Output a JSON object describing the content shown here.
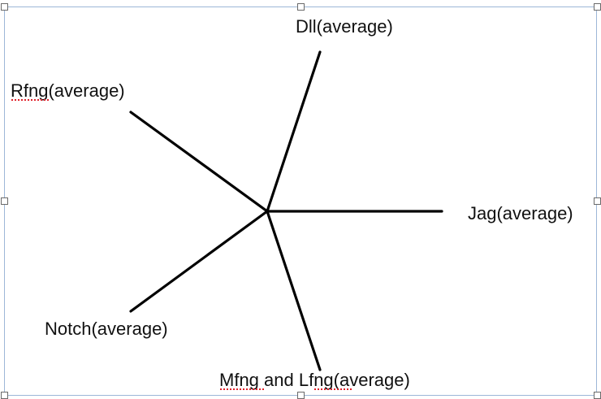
{
  "diagram": {
    "center_label": "",
    "branches": [
      {
        "id": "dll",
        "label": "Dll(average)"
      },
      {
        "id": "rfng",
        "label": "Rfng(average)"
      },
      {
        "id": "jag",
        "label": "Jag(average)"
      },
      {
        "id": "notch",
        "label": "Notch(average)"
      },
      {
        "id": "mfng-lfng",
        "label": "Mfng and Lfng(average)"
      }
    ],
    "colors": {
      "line": "#000000",
      "text": "#111111",
      "frame": "#9db7d8",
      "spellcheck": "#e0212b"
    }
  }
}
